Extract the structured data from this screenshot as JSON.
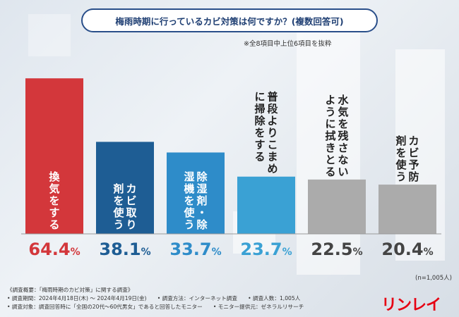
{
  "header": {
    "title": "梅雨時期に行っているカビ対策は何ですか？(複数回答可)",
    "note": "※全8項目中上位6項目を抜粋"
  },
  "chart_data": {
    "type": "bar",
    "title": "梅雨時期に行っているカビ対策は何ですか？(複数回答可)",
    "categories": [
      "換気をする",
      "カビ取り剤を使う",
      "除湿剤・除湿機を使う",
      "普段よりこまめに掃除をする",
      "水気を残さないように拭きとる",
      "カビ予防剤を使う"
    ],
    "values": [
      64.4,
      38.1,
      33.7,
      23.7,
      22.5,
      20.4
    ],
    "value_labels": [
      "64.4%",
      "38.1%",
      "33.7%",
      "23.7%",
      "22.5%",
      "20.4%"
    ],
    "bar_colors": [
      "#d3373b",
      "#1e5d94",
      "#2e8cc9",
      "#3aa1d4",
      "#ababab",
      "#ababab"
    ],
    "label_colors": [
      "#d3373b",
      "#1e5d94",
      "#2e8cc9",
      "#3aa1d4",
      "#444444",
      "#444444"
    ],
    "ylim": [
      0,
      70
    ],
    "sample": "(n=1,005人)"
  },
  "footer": {
    "line1": "《調査概要：「梅雨時期のカビ対策」に関する調査》",
    "line2": "• 調査期間：2024年4月18日(木) ～ 2024年4月19日(金)　　• 調査方法：インターネット調査　　• 調査人数：1,005人",
    "line3": "• 調査対象：調査回答時に「全国の20代～60代男女」であると回答したモニター　　• モニター提供元：ゼネラルリサーチ"
  },
  "brand": "リンレイ"
}
